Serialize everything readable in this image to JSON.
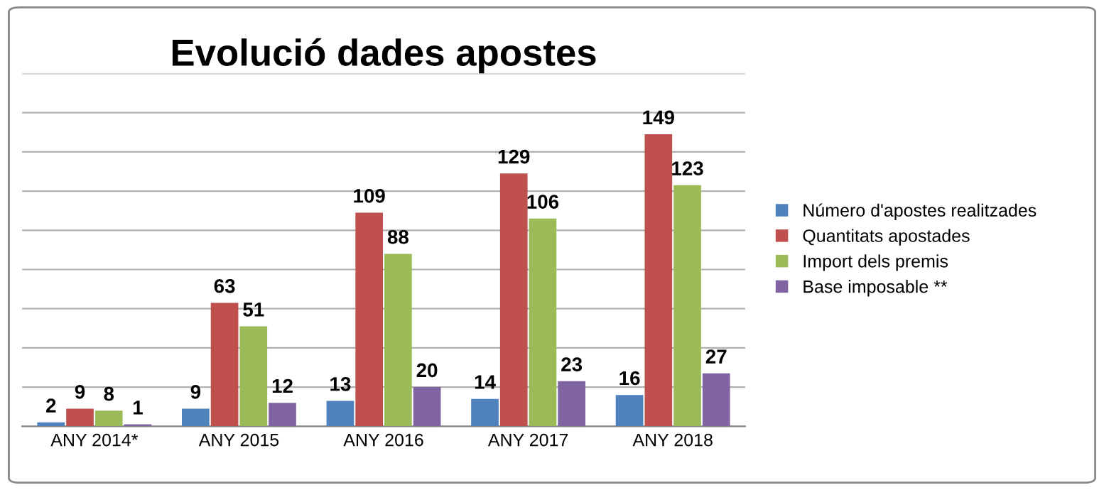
{
  "chart_data": {
    "type": "bar",
    "title": "Evolució dades apostes",
    "categories": [
      "ANY 2014*",
      "ANY 2015",
      "ANY 2016",
      "ANY 2017",
      "ANY 2018"
    ],
    "series": [
      {
        "name": "Número d'apostes realitzades",
        "color": "#4f81bd",
        "values": [
          2,
          9,
          13,
          14,
          16
        ]
      },
      {
        "name": "Quantitats apostades",
        "color": "#c0504d",
        "values": [
          9,
          63,
          109,
          129,
          149
        ]
      },
      {
        "name": "Import dels premis",
        "color": "#9bbb59",
        "values": [
          8,
          51,
          88,
          106,
          123
        ]
      },
      {
        "name": "Base imposable **",
        "color": "#8064a2",
        "values": [
          1,
          12,
          20,
          23,
          27
        ]
      }
    ],
    "ylim": [
      0,
      180
    ],
    "yticks": [
      0,
      {
        "value": 20,
        "label": null
      },
      {
        "value": 40,
        "label": null
      },
      {
        "value": 60,
        "label": null
      },
      {
        "value": 80,
        "label": null
      },
      {
        "value": 100,
        "label": null
      },
      {
        "value": 120,
        "label": null
      },
      {
        "value": 140,
        "label": null
      },
      {
        "value": 160,
        "label": null
      },
      {
        "value": 180,
        "label": null
      }
    ],
    "grid": "y",
    "legend": "right",
    "data_labels": true,
    "tick_labels": "x"
  }
}
